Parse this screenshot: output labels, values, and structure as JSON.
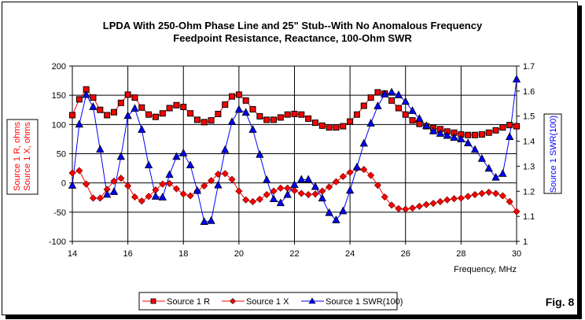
{
  "figure_label": "Fig. 8",
  "chart_data": {
    "type": "line",
    "title": "LPDA With 250-Ohm Phase Line and 25\" Stub--With No Anomalous Frequency",
    "subtitle": "Feedpoint Resistance, Reactance, 100-Ohm SWR",
    "xlabel": "Frequency, MHz",
    "ylabel_left": [
      "Source 1 R,  ohms",
      "Source 1 X,  ohms"
    ],
    "ylabel_right": "Source 1 SWR(100)",
    "xlim": [
      14,
      30
    ],
    "ylim_left": [
      -100,
      200
    ],
    "ylim_right": [
      1,
      1.7
    ],
    "x_ticks": [
      "14",
      "16",
      "18",
      "20",
      "22",
      "24",
      "26",
      "28",
      "30"
    ],
    "y_ticks_left": [
      "200",
      "150",
      "100",
      "50",
      "0",
      "-50",
      "-100"
    ],
    "y_ticks_right": [
      "1.7",
      "1.6",
      "1.5",
      "1.4",
      "1.3",
      "1.2",
      "1.1",
      "1"
    ],
    "grid": "horizontal and vertical major",
    "legend_position": "bottom",
    "x": [
      14,
      14.25,
      14.5,
      14.75,
      15,
      15.25,
      15.5,
      15.75,
      16,
      16.25,
      16.5,
      16.75,
      17,
      17.25,
      17.5,
      17.75,
      18,
      18.25,
      18.5,
      18.75,
      19,
      19.25,
      19.5,
      19.75,
      20,
      20.25,
      20.5,
      20.75,
      21,
      21.25,
      21.5,
      21.75,
      22,
      22.25,
      22.5,
      22.75,
      23,
      23.25,
      23.5,
      23.75,
      24,
      24.25,
      24.5,
      24.75,
      25,
      25.25,
      25.5,
      25.75,
      26,
      26.25,
      26.5,
      26.75,
      27,
      27.25,
      27.5,
      27.75,
      28,
      28.25,
      28.5,
      28.75,
      29,
      29.25,
      29.5,
      29.75,
      30
    ],
    "series": [
      {
        "name": "Source 1 R",
        "axis": "left",
        "color": "#ff0000",
        "marker": "square",
        "values": [
          116,
          143,
          160,
          146,
          125,
          116,
          121,
          137,
          151,
          146,
          129,
          117,
          113,
          119,
          128,
          133,
          130,
          119,
          108,
          104,
          107,
          118,
          134,
          148,
          151,
          141,
          126,
          114,
          108,
          108,
          112,
          117,
          118,
          117,
          110,
          103,
          98,
          95,
          95,
          97,
          105,
          117,
          132,
          146,
          155,
          153,
          141,
          128,
          117,
          107,
          101,
          97,
          94,
          92,
          88,
          86,
          83,
          82,
          82,
          83,
          86,
          90,
          95,
          99,
          97
        ]
      },
      {
        "name": "Source 1 X",
        "axis": "left",
        "color": "#ff0000",
        "marker": "diamond",
        "values": [
          17,
          21,
          -2,
          -26,
          -26,
          -11,
          3,
          8,
          -5,
          -24,
          -31,
          -23,
          -12,
          -2,
          -1,
          -10,
          -19,
          -22,
          -14,
          -5,
          4,
          15,
          16,
          6,
          -14,
          -29,
          -32,
          -28,
          -20,
          -14,
          -9,
          -9,
          -13,
          -18,
          -20,
          -19,
          -14,
          -7,
          2,
          11,
          18,
          25,
          23,
          13,
          -4,
          -24,
          -38,
          -44,
          -45,
          -43,
          -40,
          -37,
          -35,
          -32,
          -29,
          -27,
          -26,
          -23,
          -20,
          -18,
          -16,
          -18,
          -22,
          -32,
          -49
        ]
      },
      {
        "name": "Source 1 SWR(100)",
        "axis": "right",
        "color": "#0000ff",
        "marker": "triangle",
        "values": [
          1.223,
          1.467,
          1.585,
          1.537,
          1.367,
          1.187,
          1.198,
          1.338,
          1.501,
          1.53,
          1.446,
          1.304,
          1.179,
          1.176,
          1.266,
          1.338,
          1.352,
          1.304,
          1.202,
          1.078,
          1.082,
          1.224,
          1.365,
          1.477,
          1.526,
          1.514,
          1.446,
          1.346,
          1.245,
          1.169,
          1.153,
          1.186,
          1.226,
          1.247,
          1.247,
          1.218,
          1.172,
          1.114,
          1.085,
          1.121,
          1.203,
          1.296,
          1.391,
          1.471,
          1.54,
          1.587,
          1.595,
          1.584,
          1.558,
          1.521,
          1.49,
          1.461,
          1.44,
          1.43,
          1.422,
          1.414,
          1.408,
          1.392,
          1.366,
          1.33,
          1.291,
          1.255,
          1.27,
          1.417,
          1.647
        ]
      }
    ]
  }
}
